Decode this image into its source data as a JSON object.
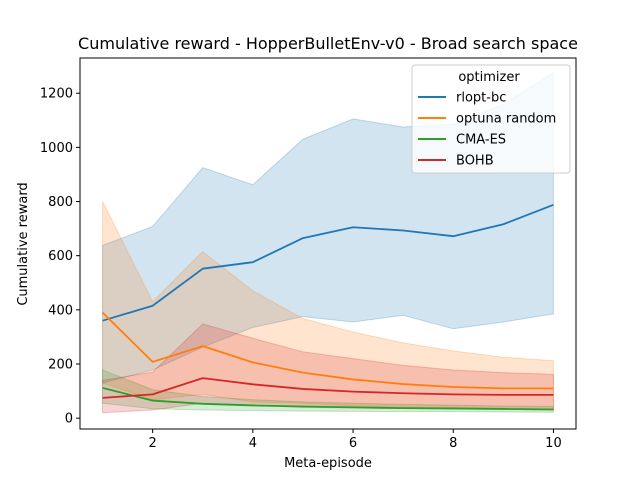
{
  "chart_data": {
    "type": "line",
    "title": "Cumulative reward - HopperBulletEnv-v0 - Broad search space",
    "xlabel": "Meta-episode",
    "ylabel": "Cumulative reward",
    "xlim": [
      0.55,
      10.45
    ],
    "ylim": [
      -40,
      1330
    ],
    "xticks": [
      2,
      4,
      6,
      8,
      10
    ],
    "yticks": [
      0,
      200,
      400,
      600,
      800,
      1000,
      1200
    ],
    "grid": false,
    "legend": {
      "title": "optimizer",
      "placement": "top-right"
    },
    "x": [
      1,
      2,
      3,
      4,
      5,
      6,
      7,
      8,
      9,
      10
    ],
    "series": [
      {
        "name": "rlopt-bc",
        "color": "#1f77b4",
        "values": [
          360,
          415,
          552,
          576,
          665,
          705,
          693,
          672,
          716,
          788
        ],
        "upper": [
          638,
          708,
          925,
          862,
          1030,
          1105,
          1075,
          1085,
          1160,
          1275
        ],
        "lower": [
          130,
          178,
          262,
          335,
          375,
          355,
          380,
          330,
          355,
          385
        ]
      },
      {
        "name": "optuna random",
        "color": "#ff7f0e",
        "values": [
          390,
          208,
          266,
          206,
          168,
          143,
          126,
          115,
          110,
          110
        ],
        "upper": [
          800,
          430,
          615,
          470,
          368,
          318,
          278,
          248,
          225,
          212
        ],
        "lower": [
          130,
          68,
          88,
          60,
          55,
          45,
          40,
          35,
          33,
          30
        ]
      },
      {
        "name": "CMA-ES",
        "color": "#2ca02c",
        "values": [
          112,
          65,
          53,
          47,
          43,
          40,
          37,
          36,
          34,
          32
        ],
        "upper": [
          178,
          105,
          80,
          68,
          60,
          55,
          51,
          48,
          45,
          43
        ],
        "lower": [
          55,
          35,
          30,
          28,
          26,
          25,
          24,
          24,
          23,
          22
        ]
      },
      {
        "name": "BOHB",
        "color": "#d62728",
        "values": [
          75,
          88,
          148,
          125,
          108,
          98,
          92,
          88,
          86,
          86
        ],
        "upper": [
          140,
          170,
          348,
          295,
          245,
          220,
          195,
          178,
          168,
          162
        ],
        "lower": [
          20,
          30,
          55,
          48,
          40,
          38,
          36,
          35,
          34,
          33
        ]
      }
    ]
  }
}
